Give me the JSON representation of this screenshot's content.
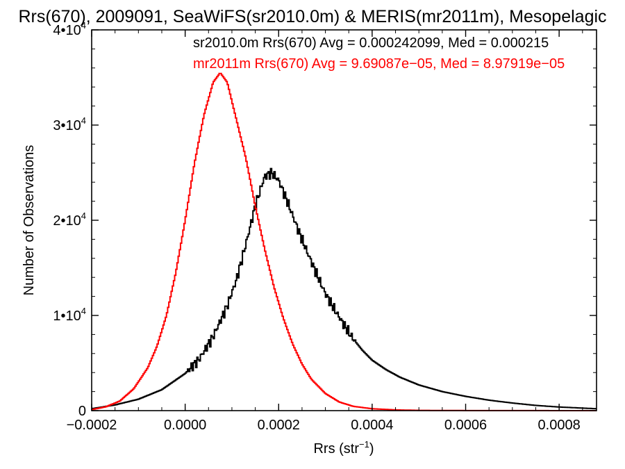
{
  "chart_data": {
    "type": "histogram",
    "title": "Rrs(670), 2009091, SeaWiFS(sr2010.0m) & MERIS(mr2011m), Mesopelagic",
    "xlabel_main": "Rrs (str",
    "xlabel_sup": "−1",
    "xlabel_close": ")",
    "ylabel": "Number of Observations",
    "xlim": [
      -0.0002,
      0.00088
    ],
    "ylim": [
      0,
      40000
    ],
    "x_ticks": [
      {
        "value": -0.0002,
        "label": "−0.0002"
      },
      {
        "value": 0.0,
        "label": "0.0000"
      },
      {
        "value": 0.0002,
        "label": "0.0002"
      },
      {
        "value": 0.0004,
        "label": "0.0004"
      },
      {
        "value": 0.0006,
        "label": "0.0006"
      },
      {
        "value": 0.0008,
        "label": "0.0008"
      }
    ],
    "y_ticks": [
      {
        "value": 0,
        "base": "0",
        "exp": ""
      },
      {
        "value": 10000,
        "base": "1•10",
        "exp": "4"
      },
      {
        "value": 20000,
        "base": "2•10",
        "exp": "4"
      },
      {
        "value": 30000,
        "base": "3•10",
        "exp": "4"
      },
      {
        "value": 40000,
        "base": "4•10",
        "exp": "4"
      }
    ],
    "grid": false,
    "series": [
      {
        "name": "sr2010.0m Rrs(670)",
        "color": "#000000",
        "legend_text": "sr2010.0m Rrs(670) Avg = 0.000242099, Med = 0.000215",
        "avg": 0.000242099,
        "peak_x": 0.000185,
        "peak_y": 25000,
        "points": [
          [
            -0.0002,
            200
          ],
          [
            -0.00015,
            600
          ],
          [
            -0.0001,
            1200
          ],
          [
            -5e-05,
            2200
          ],
          [
            0.0,
            3900
          ],
          [
            3e-05,
            5400
          ],
          [
            6e-05,
            7800
          ],
          [
            9e-05,
            11000
          ],
          [
            0.00011,
            13800
          ],
          [
            0.00013,
            17500
          ],
          [
            0.00015,
            21500
          ],
          [
            0.00017,
            24600
          ],
          [
            0.000185,
            25000
          ],
          [
            0.0002,
            24200
          ],
          [
            0.00022,
            21800
          ],
          [
            0.00024,
            19200
          ],
          [
            0.00026,
            16800
          ],
          [
            0.00028,
            14500
          ],
          [
            0.0003,
            12300
          ],
          [
            0.00032,
            10600
          ],
          [
            0.00034,
            9000
          ],
          [
            0.00036,
            7500
          ],
          [
            0.00038,
            6300
          ],
          [
            0.0004,
            5300
          ],
          [
            0.00043,
            4300
          ],
          [
            0.00046,
            3500
          ],
          [
            0.0005,
            2700
          ],
          [
            0.00055,
            2000
          ],
          [
            0.0006,
            1500
          ],
          [
            0.00065,
            1100
          ],
          [
            0.0007,
            800
          ],
          [
            0.00075,
            550
          ],
          [
            0.0008,
            380
          ],
          [
            0.00088,
            200
          ]
        ]
      },
      {
        "name": "mr2011m Rrs(670)",
        "color": "#ff0000",
        "legend_text": "mr2011m Rrs(670) Avg = 9.69087e−05, Med = 8.97919e−05",
        "avg": 9.69087e-05,
        "peak_x": 7.5e-05,
        "peak_y": 35500,
        "points": [
          [
            -0.0002,
            100
          ],
          [
            -0.00017,
            400
          ],
          [
            -0.00014,
            1000
          ],
          [
            -0.00011,
            2300
          ],
          [
            -8e-05,
            4500
          ],
          [
            -6e-05,
            6800
          ],
          [
            -4e-05,
            10000
          ],
          [
            -2e-05,
            14500
          ],
          [
            0.0,
            20000
          ],
          [
            2e-05,
            26000
          ],
          [
            4e-05,
            31000
          ],
          [
            6e-05,
            34500
          ],
          [
            7.5e-05,
            35500
          ],
          [
            9e-05,
            34500
          ],
          [
            0.00011,
            30500
          ],
          [
            0.00013,
            26500
          ],
          [
            0.00015,
            21500
          ],
          [
            0.00017,
            17000
          ],
          [
            0.00019,
            13000
          ],
          [
            0.00021,
            9700
          ],
          [
            0.00023,
            7000
          ],
          [
            0.00025,
            4900
          ],
          [
            0.00027,
            3300
          ],
          [
            0.0003,
            1800
          ],
          [
            0.00033,
            900
          ],
          [
            0.00036,
            450
          ],
          [
            0.0004,
            200
          ],
          [
            0.00045,
            80
          ],
          [
            0.0005,
            30
          ],
          [
            0.0006,
            10
          ],
          [
            0.00088,
            0
          ]
        ]
      }
    ]
  }
}
